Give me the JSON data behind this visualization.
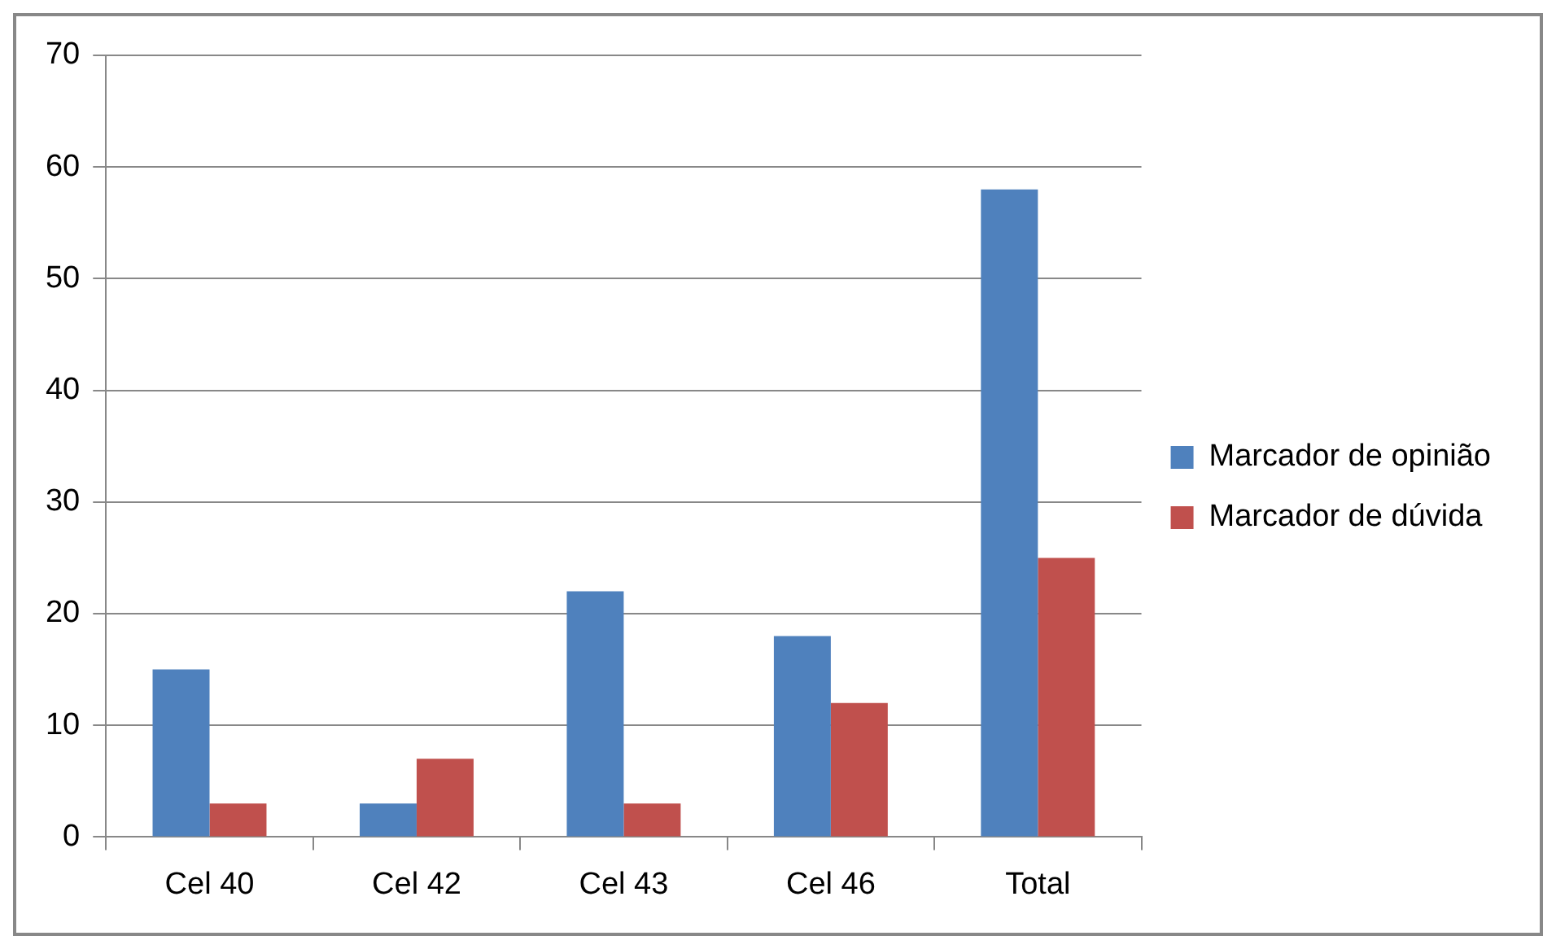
{
  "chart_data": {
    "type": "bar",
    "categories": [
      "Cel 40",
      "Cel 42",
      "Cel 43",
      "Cel 46",
      "Total"
    ],
    "series": [
      {
        "name": "Marcador de opinião",
        "color": "#4f81bd",
        "values": [
          15,
          3,
          22,
          18,
          58
        ]
      },
      {
        "name": "Marcador de dúvida",
        "color": "#c0504d",
        "values": [
          3,
          7,
          3,
          12,
          25
        ]
      }
    ],
    "ylim": [
      0,
      70
    ],
    "yticks": [
      0,
      10,
      20,
      30,
      40,
      50,
      60,
      70
    ],
    "grid": "y",
    "legend": "right"
  }
}
